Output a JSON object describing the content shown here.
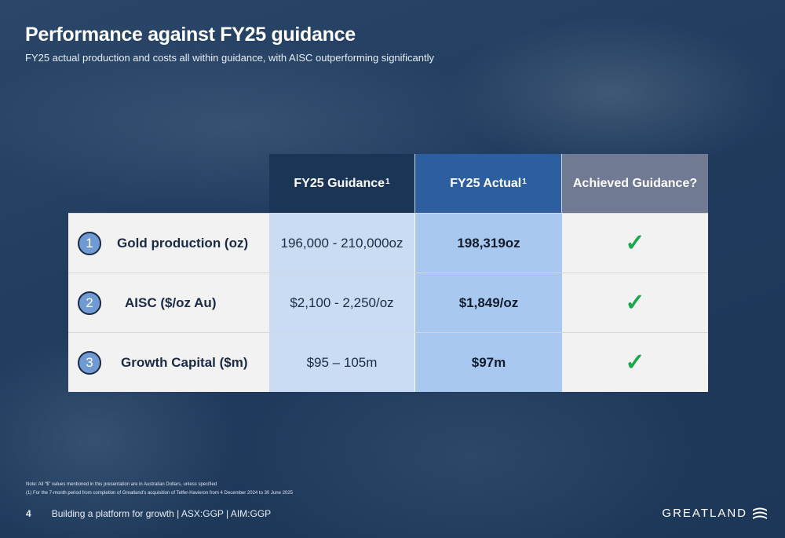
{
  "slide": {
    "title": "Performance against FY25 guidance",
    "subtitle": "FY25 actual production and costs all within guidance, with AISC outperforming significantly"
  },
  "table": {
    "headers": [
      {
        "text": "FY25 Guidance",
        "sup": "1",
        "color": "#1b3557"
      },
      {
        "text": "FY25 Actual",
        "sup": "1",
        "color": "#2d5fa0"
      },
      {
        "text": "Achieved Guidance?",
        "sup": "",
        "color": "#707a92"
      }
    ],
    "rows": [
      {
        "number": "1",
        "label": "Gold production (oz)",
        "guidance": "196,000 - 210,000oz",
        "actual": "198,319oz",
        "achieved_icon": "check-icon"
      },
      {
        "number": "2",
        "label": "AISC ($/oz Au)",
        "guidance": "$2,100 - 2,250/oz",
        "actual": "$1,849/oz",
        "achieved_icon": "check-icon"
      },
      {
        "number": "3",
        "label": "Growth Capital ($m)",
        "guidance": "$95 – 105m",
        "actual": "$97m",
        "achieved_icon": "check-icon"
      }
    ],
    "check_glyph": "✓",
    "check_color": "#19a84a"
  },
  "notes": {
    "note1": "Note: All “$” values mentioned in this presentation are in Australian Dollars, unless specified",
    "note2": "(1)   For the 7-month period from completion of Greatland’s acquisition of Telfer-Havieron from 4 December 2024 to 30 June 2025"
  },
  "footer": {
    "page_number": "4",
    "text": "Building a platform for growth  |  ASX:GGP  |  AIM:GGP"
  },
  "logo": {
    "text": "GREATLAND"
  }
}
